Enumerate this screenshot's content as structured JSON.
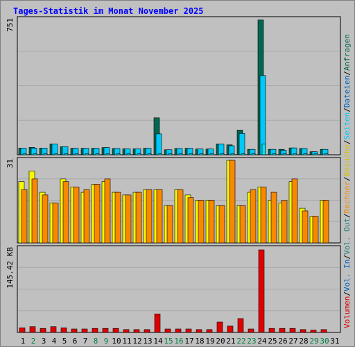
{
  "title": "Tages-Statistik im Monat November 2025",
  "colors": {
    "background": "#c0c0c0",
    "title": "#0000ff",
    "anfragen": "#006850",
    "dateien": "#00c8f8",
    "seiten": "#00e0f0",
    "besuche": "#f8f800",
    "rechner": "#f88800",
    "volumen": "#e00000",
    "weekday": "#000000",
    "weekend": "#008040"
  },
  "chart_data": [
    {
      "type": "bar",
      "panel": "requests",
      "y_max_label": "751",
      "ylim": [
        0,
        751
      ],
      "categories": [
        "1",
        "2",
        "3",
        "4",
        "5",
        "6",
        "7",
        "8",
        "9",
        "10",
        "11",
        "12",
        "13",
        "14",
        "15",
        "16",
        "17",
        "18",
        "19",
        "20",
        "21",
        "22",
        "23",
        "24",
        "25",
        "26",
        "27",
        "28",
        "29",
        "30",
        "31"
      ],
      "series": [
        {
          "name": "Anfragen",
          "color": "#006850",
          "values": [
            37,
            41,
            37,
            60,
            45,
            36,
            36,
            36,
            40,
            35,
            33,
            33,
            36,
            205,
            28,
            35,
            36,
            32,
            32,
            60,
            55,
            137,
            30,
            748,
            30,
            30,
            38,
            35,
            17,
            30,
            0
          ]
        },
        {
          "name": "Dateien",
          "color": "#00c8f8",
          "values": [
            37,
            37,
            37,
            60,
            45,
            36,
            36,
            36,
            40,
            35,
            33,
            33,
            36,
            116,
            28,
            35,
            36,
            32,
            32,
            60,
            50,
            118,
            30,
            440,
            30,
            25,
            38,
            35,
            17,
            30,
            0
          ]
        },
        {
          "name": "Seiten",
          "color": "#00e0f0",
          "values": [
            5,
            5,
            5,
            5,
            5,
            5,
            5,
            5,
            5,
            5,
            5,
            5,
            5,
            5,
            5,
            5,
            5,
            5,
            5,
            5,
            5,
            5,
            5,
            60,
            5,
            5,
            5,
            5,
            5,
            5,
            0
          ]
        }
      ],
      "legend": [
        "Anfragen",
        "Dateien",
        "Seiten"
      ]
    },
    {
      "type": "bar",
      "panel": "visits",
      "y_max_label": "31",
      "ylim": [
        0,
        31
      ],
      "categories": [
        "1",
        "2",
        "3",
        "4",
        "5",
        "6",
        "7",
        "8",
        "9",
        "10",
        "11",
        "12",
        "13",
        "14",
        "15",
        "16",
        "17",
        "18",
        "19",
        "20",
        "21",
        "22",
        "23",
        "24",
        "25",
        "26",
        "27",
        "28",
        "29",
        "30",
        "31"
      ],
      "series": [
        {
          "name": "Besuche",
          "color": "#f8f800",
          "values": [
            23,
            27,
            19,
            15,
            24,
            21,
            19,
            22,
            23,
            19,
            18,
            19,
            20,
            20,
            14,
            20,
            18,
            16,
            16,
            14,
            31,
            14,
            19,
            21,
            16,
            15,
            23,
            13,
            10,
            16,
            0
          ]
        },
        {
          "name": "Rechner",
          "color": "#f88800",
          "values": [
            20,
            24,
            18,
            15,
            23,
            21,
            20,
            22,
            24,
            19,
            18,
            19,
            20,
            20,
            14,
            20,
            17,
            16,
            16,
            14,
            31,
            14,
            20,
            21,
            19,
            16,
            24,
            12,
            10,
            16,
            0
          ]
        }
      ],
      "legend": [
        "Besuche",
        "Rechner"
      ]
    },
    {
      "type": "bar",
      "panel": "volume",
      "y_max_label": "145.42 KB",
      "ylim": [
        0,
        145.42
      ],
      "categories": [
        "1",
        "2",
        "3",
        "4",
        "5",
        "6",
        "7",
        "8",
        "9",
        "10",
        "11",
        "12",
        "13",
        "14",
        "15",
        "16",
        "17",
        "18",
        "19",
        "20",
        "21",
        "22",
        "23",
        "24",
        "25",
        "26",
        "27",
        "28",
        "29",
        "30",
        "31"
      ],
      "series": [
        {
          "name": "Volumen",
          "color": "#e00000",
          "values": [
            8,
            10,
            7,
            10,
            8,
            6,
            6,
            7,
            7,
            7,
            5,
            5,
            5,
            32,
            6,
            6,
            6,
            5,
            5,
            18,
            11,
            24,
            6,
            143,
            7,
            7,
            7,
            5,
            4,
            5,
            0
          ]
        }
      ],
      "legend": [
        "Volumen",
        "Vol. In",
        "Vol. Out"
      ]
    }
  ],
  "x_axis": {
    "labels": [
      "1",
      "2",
      "3",
      "4",
      "5",
      "6",
      "7",
      "8",
      "9",
      "10",
      "11",
      "12",
      "13",
      "14",
      "15",
      "16",
      "17",
      "18",
      "19",
      "20",
      "21",
      "22",
      "23",
      "24",
      "25",
      "26",
      "27",
      "28",
      "29",
      "30",
      "31"
    ],
    "weekend": [
      false,
      true,
      false,
      false,
      false,
      false,
      false,
      true,
      true,
      false,
      false,
      false,
      false,
      false,
      true,
      true,
      false,
      false,
      false,
      false,
      false,
      true,
      true,
      false,
      false,
      false,
      false,
      false,
      true,
      true,
      false
    ]
  },
  "legend_right": [
    {
      "text": "Volumen",
      "color": "#e00000"
    },
    {
      "text": "/",
      "color": "#000000"
    },
    {
      "text": "Vol. In",
      "color": "#0060c0"
    },
    {
      "text": "/",
      "color": "#000000"
    },
    {
      "text": "Vol. Out",
      "color": "#208080"
    },
    {
      "text": "/",
      "color": "#000000"
    },
    {
      "text": "Rechner",
      "color": "#f88800"
    },
    {
      "text": "/",
      "color": "#000000"
    },
    {
      "text": "Besuche",
      "color": "#d8c000"
    },
    {
      "text": "/",
      "color": "#000000"
    },
    {
      "text": "Seiten",
      "color": "#00c8f8"
    },
    {
      "text": "/",
      "color": "#000000"
    },
    {
      "text": "Dateien",
      "color": "#0060c0"
    },
    {
      "text": "/",
      "color": "#000000"
    },
    {
      "text": "Anfragen",
      "color": "#006850"
    }
  ]
}
